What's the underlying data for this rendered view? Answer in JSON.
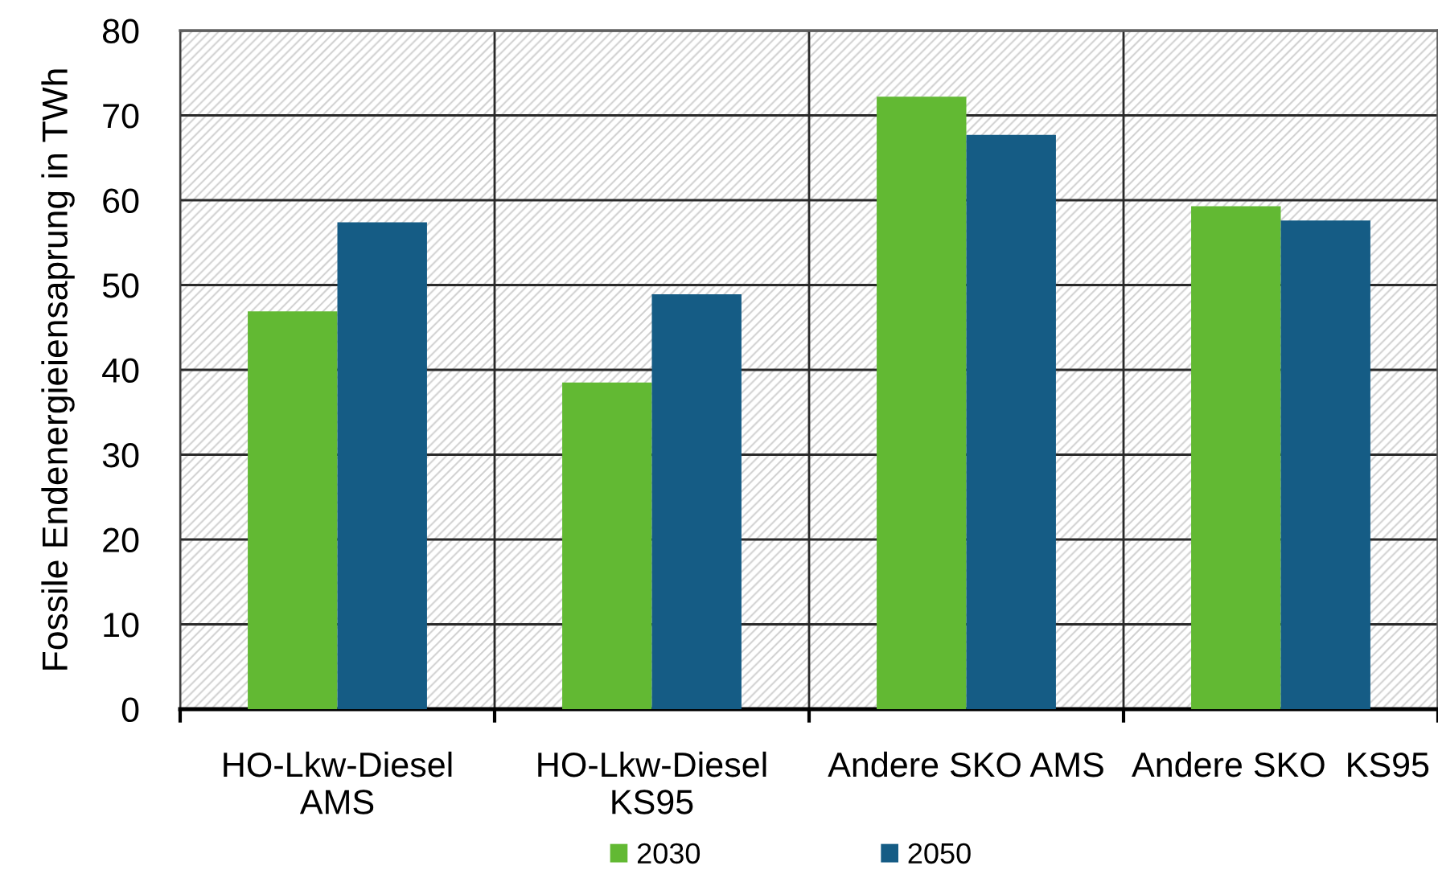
{
  "chart_data": {
    "type": "bar",
    "ylabel": "Fossile Endenergieiensaprung in TWh",
    "categories": [
      "HO-Lkw-Diesel\nAMS",
      "HO-Lkw-Diesel\nKS95",
      "Andere SKO AMS",
      "Andere SKO  KS95"
    ],
    "series": [
      {
        "name": "2030",
        "color": "#62b933",
        "values": [
          46.9,
          38.5,
          72.2,
          59.3
        ]
      },
      {
        "name": "2050",
        "color": "#155c85",
        "values": [
          57.4,
          48.9,
          67.7,
          57.6
        ]
      }
    ],
    "ylim": [
      0,
      80
    ],
    "yticks": [
      0,
      10,
      20,
      30,
      40,
      50,
      60,
      70,
      80
    ],
    "grid": true,
    "legend": "bottom"
  }
}
